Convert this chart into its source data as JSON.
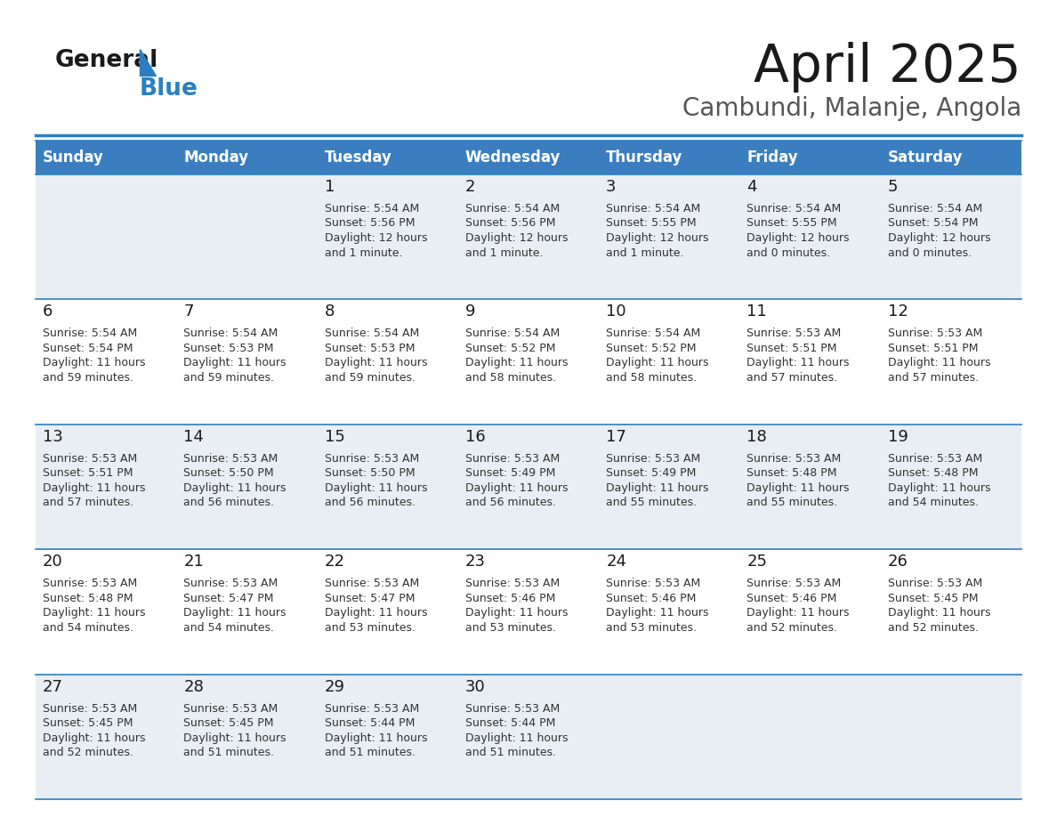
{
  "title": "April 2025",
  "subtitle": "Cambundi, Malanje, Angola",
  "header_bg": "#3a7ebf",
  "header_text_color": "#ffffff",
  "cell_bg_row0": "#e8eef4",
  "cell_bg_row1": "#ffffff",
  "cell_bg_row2": "#e8eef4",
  "cell_bg_row3": "#ffffff",
  "cell_bg_row4": "#e8eef4",
  "day_headers": [
    "Sunday",
    "Monday",
    "Tuesday",
    "Wednesday",
    "Thursday",
    "Friday",
    "Saturday"
  ],
  "days": [
    {
      "day": 1,
      "col": 2,
      "row": 0,
      "sunrise": "5:54 AM",
      "sunset": "5:56 PM",
      "daylight_line1": "Daylight: 12 hours",
      "daylight_line2": "and 1 minute."
    },
    {
      "day": 2,
      "col": 3,
      "row": 0,
      "sunrise": "5:54 AM",
      "sunset": "5:56 PM",
      "daylight_line1": "Daylight: 12 hours",
      "daylight_line2": "and 1 minute."
    },
    {
      "day": 3,
      "col": 4,
      "row": 0,
      "sunrise": "5:54 AM",
      "sunset": "5:55 PM",
      "daylight_line1": "Daylight: 12 hours",
      "daylight_line2": "and 1 minute."
    },
    {
      "day": 4,
      "col": 5,
      "row": 0,
      "sunrise": "5:54 AM",
      "sunset": "5:55 PM",
      "daylight_line1": "Daylight: 12 hours",
      "daylight_line2": "and 0 minutes."
    },
    {
      "day": 5,
      "col": 6,
      "row": 0,
      "sunrise": "5:54 AM",
      "sunset": "5:54 PM",
      "daylight_line1": "Daylight: 12 hours",
      "daylight_line2": "and 0 minutes."
    },
    {
      "day": 6,
      "col": 0,
      "row": 1,
      "sunrise": "5:54 AM",
      "sunset": "5:54 PM",
      "daylight_line1": "Daylight: 11 hours",
      "daylight_line2": "and 59 minutes."
    },
    {
      "day": 7,
      "col": 1,
      "row": 1,
      "sunrise": "5:54 AM",
      "sunset": "5:53 PM",
      "daylight_line1": "Daylight: 11 hours",
      "daylight_line2": "and 59 minutes."
    },
    {
      "day": 8,
      "col": 2,
      "row": 1,
      "sunrise": "5:54 AM",
      "sunset": "5:53 PM",
      "daylight_line1": "Daylight: 11 hours",
      "daylight_line2": "and 59 minutes."
    },
    {
      "day": 9,
      "col": 3,
      "row": 1,
      "sunrise": "5:54 AM",
      "sunset": "5:52 PM",
      "daylight_line1": "Daylight: 11 hours",
      "daylight_line2": "and 58 minutes."
    },
    {
      "day": 10,
      "col": 4,
      "row": 1,
      "sunrise": "5:54 AM",
      "sunset": "5:52 PM",
      "daylight_line1": "Daylight: 11 hours",
      "daylight_line2": "and 58 minutes."
    },
    {
      "day": 11,
      "col": 5,
      "row": 1,
      "sunrise": "5:53 AM",
      "sunset": "5:51 PM",
      "daylight_line1": "Daylight: 11 hours",
      "daylight_line2": "and 57 minutes."
    },
    {
      "day": 12,
      "col": 6,
      "row": 1,
      "sunrise": "5:53 AM",
      "sunset": "5:51 PM",
      "daylight_line1": "Daylight: 11 hours",
      "daylight_line2": "and 57 minutes."
    },
    {
      "day": 13,
      "col": 0,
      "row": 2,
      "sunrise": "5:53 AM",
      "sunset": "5:51 PM",
      "daylight_line1": "Daylight: 11 hours",
      "daylight_line2": "and 57 minutes."
    },
    {
      "day": 14,
      "col": 1,
      "row": 2,
      "sunrise": "5:53 AM",
      "sunset": "5:50 PM",
      "daylight_line1": "Daylight: 11 hours",
      "daylight_line2": "and 56 minutes."
    },
    {
      "day": 15,
      "col": 2,
      "row": 2,
      "sunrise": "5:53 AM",
      "sunset": "5:50 PM",
      "daylight_line1": "Daylight: 11 hours",
      "daylight_line2": "and 56 minutes."
    },
    {
      "day": 16,
      "col": 3,
      "row": 2,
      "sunrise": "5:53 AM",
      "sunset": "5:49 PM",
      "daylight_line1": "Daylight: 11 hours",
      "daylight_line2": "and 56 minutes."
    },
    {
      "day": 17,
      "col": 4,
      "row": 2,
      "sunrise": "5:53 AM",
      "sunset": "5:49 PM",
      "daylight_line1": "Daylight: 11 hours",
      "daylight_line2": "and 55 minutes."
    },
    {
      "day": 18,
      "col": 5,
      "row": 2,
      "sunrise": "5:53 AM",
      "sunset": "5:48 PM",
      "daylight_line1": "Daylight: 11 hours",
      "daylight_line2": "and 55 minutes."
    },
    {
      "day": 19,
      "col": 6,
      "row": 2,
      "sunrise": "5:53 AM",
      "sunset": "5:48 PM",
      "daylight_line1": "Daylight: 11 hours",
      "daylight_line2": "and 54 minutes."
    },
    {
      "day": 20,
      "col": 0,
      "row": 3,
      "sunrise": "5:53 AM",
      "sunset": "5:48 PM",
      "daylight_line1": "Daylight: 11 hours",
      "daylight_line2": "and 54 minutes."
    },
    {
      "day": 21,
      "col": 1,
      "row": 3,
      "sunrise": "5:53 AM",
      "sunset": "5:47 PM",
      "daylight_line1": "Daylight: 11 hours",
      "daylight_line2": "and 54 minutes."
    },
    {
      "day": 22,
      "col": 2,
      "row": 3,
      "sunrise": "5:53 AM",
      "sunset": "5:47 PM",
      "daylight_line1": "Daylight: 11 hours",
      "daylight_line2": "and 53 minutes."
    },
    {
      "day": 23,
      "col": 3,
      "row": 3,
      "sunrise": "5:53 AM",
      "sunset": "5:46 PM",
      "daylight_line1": "Daylight: 11 hours",
      "daylight_line2": "and 53 minutes."
    },
    {
      "day": 24,
      "col": 4,
      "row": 3,
      "sunrise": "5:53 AM",
      "sunset": "5:46 PM",
      "daylight_line1": "Daylight: 11 hours",
      "daylight_line2": "and 53 minutes."
    },
    {
      "day": 25,
      "col": 5,
      "row": 3,
      "sunrise": "5:53 AM",
      "sunset": "5:46 PM",
      "daylight_line1": "Daylight: 11 hours",
      "daylight_line2": "and 52 minutes."
    },
    {
      "day": 26,
      "col": 6,
      "row": 3,
      "sunrise": "5:53 AM",
      "sunset": "5:45 PM",
      "daylight_line1": "Daylight: 11 hours",
      "daylight_line2": "and 52 minutes."
    },
    {
      "day": 27,
      "col": 0,
      "row": 4,
      "sunrise": "5:53 AM",
      "sunset": "5:45 PM",
      "daylight_line1": "Daylight: 11 hours",
      "daylight_line2": "and 52 minutes."
    },
    {
      "day": 28,
      "col": 1,
      "row": 4,
      "sunrise": "5:53 AM",
      "sunset": "5:45 PM",
      "daylight_line1": "Daylight: 11 hours",
      "daylight_line2": "and 51 minutes."
    },
    {
      "day": 29,
      "col": 2,
      "row": 4,
      "sunrise": "5:53 AM",
      "sunset": "5:44 PM",
      "daylight_line1": "Daylight: 11 hours",
      "daylight_line2": "and 51 minutes."
    },
    {
      "day": 30,
      "col": 3,
      "row": 4,
      "sunrise": "5:53 AM",
      "sunset": "5:44 PM",
      "daylight_line1": "Daylight: 11 hours",
      "daylight_line2": "and 51 minutes."
    }
  ],
  "logo_color_general": "#1a1a1a",
  "logo_color_blue": "#2b7fc1",
  "title_color": "#1a1a1a",
  "subtitle_color": "#555555",
  "divider_color": "#2b7fc1",
  "cell_number_color": "#1a1a1a",
  "cell_text_color": "#333333",
  "separator_color": "#2b7fc1"
}
